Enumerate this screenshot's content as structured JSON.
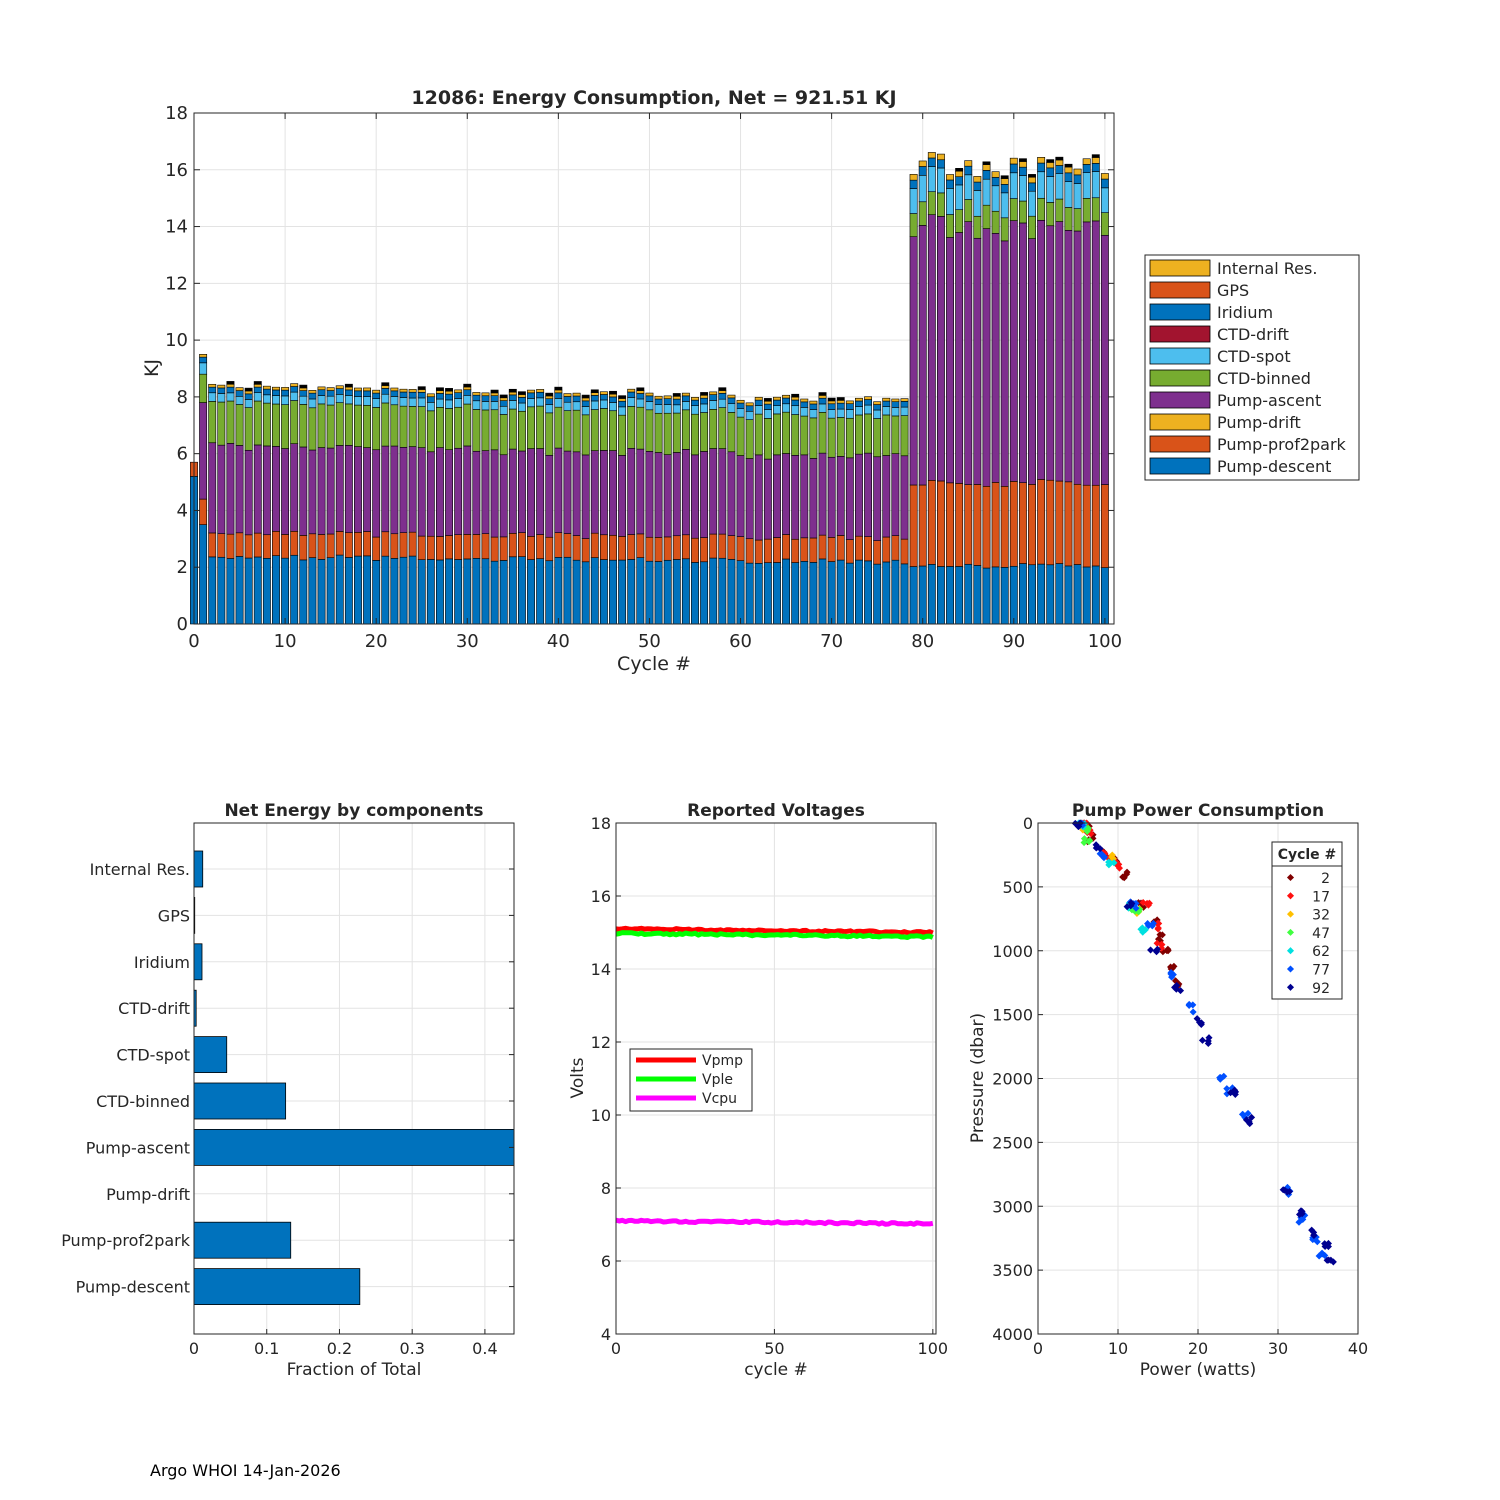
{
  "footer": "Argo WHOI 14-Jan-2026",
  "colors": {
    "Pump-descent": "#0072BD",
    "Pump-prof2park": "#D95319",
    "Pump-drift": "#EDB120",
    "Pump-ascent": "#7E2F8E",
    "CTD-binned": "#77AC30",
    "CTD-spot": "#4DBEEE",
    "CTD-drift": "#A2142F",
    "Iridium": "#0072BD",
    "GPS": "#D95319",
    "Internal Res.": "#EDB120",
    "black": "#000000"
  },
  "chart_data": [
    {
      "id": "energy",
      "type": "bar",
      "stacked": true,
      "title": "12086: Energy Consumption,  Net = 921.51 KJ",
      "xlabel": "Cycle #",
      "ylabel": "KJ",
      "xlim": [
        0,
        101
      ],
      "ylim": [
        0,
        18
      ],
      "xticks": [
        "0",
        "10",
        "20",
        "30",
        "40",
        "50",
        "60",
        "70",
        "80",
        "90",
        "100"
      ],
      "yticks": [
        "0",
        "2",
        "4",
        "6",
        "8",
        "10",
        "12",
        "14",
        "16",
        "18"
      ],
      "grid": true,
      "legend_position": "right",
      "legend": [
        "Internal Res.",
        "GPS",
        "Iridium",
        "CTD-drift",
        "CTD-spot",
        "CTD-binned",
        "Pump-ascent",
        "Pump-drift",
        "Pump-prof2park",
        "Pump-descent"
      ],
      "cycles": "1-100 (cycle 0: descent 5.2, prof2park 0.5)",
      "segments_typical": {
        "cycle_1": {
          "Pump-descent": 3.5,
          "Pump-prof2park": 0.9,
          "Pump-ascent": 3.4,
          "CTD-binned": 0.9,
          "CTD-spot": 0.4,
          "Iridium": 0.2,
          "Internal Res.": 0.1
        },
        "cycles_2_78": {
          "Pump-descent": 2.3,
          "Pump-prof2park": 0.85,
          "Pump-ascent": 3.1,
          "CTD-binned": 1.5,
          "CTD-spot": 0.3,
          "Iridium": 0.2,
          "Internal Res.": 0.1
        },
        "cycles_79_100": {
          "Pump-descent": 2.05,
          "Pump-prof2park": 2.9,
          "Pump-ascent": 9.0,
          "CTD-binned": 0.8,
          "CTD-spot": 0.9,
          "Iridium": 0.3,
          "Internal Res.": 0.2
        }
      }
    },
    {
      "id": "components",
      "type": "barh",
      "title": "Net Energy by components",
      "xlabel": "Fraction of Total",
      "ylabel": "",
      "xlim": [
        0,
        0.44
      ],
      "xticks": [
        "0",
        "0.1",
        "0.2",
        "0.3",
        "0.4"
      ],
      "grid": true,
      "categories": [
        "Internal Res.",
        "GPS",
        "Iridium",
        "CTD-drift",
        "CTD-spot",
        "CTD-binned",
        "Pump-ascent",
        "Pump-drift",
        "Pump-prof2park",
        "Pump-descent"
      ],
      "values": [
        0.012,
        0.001,
        0.011,
        0.003,
        0.045,
        0.126,
        0.44,
        0.0,
        0.133,
        0.228
      ]
    },
    {
      "id": "voltages",
      "type": "line",
      "title": "Reported Voltages",
      "xlabel": "cycle #",
      "ylabel": "Volts",
      "xlim": [
        0,
        101
      ],
      "ylim": [
        4,
        18
      ],
      "xticks": [
        "0",
        "50",
        "100"
      ],
      "yticks": [
        "4",
        "6",
        "8",
        "10",
        "12",
        "14",
        "16",
        "18"
      ],
      "grid": true,
      "legend_position": "center-left",
      "series": [
        {
          "name": "Vpmp",
          "color": "#FF0000",
          "start": 15.1,
          "end": 15.0
        },
        {
          "name": "Vple",
          "color": "#00FF00",
          "start": 14.98,
          "end": 14.88
        },
        {
          "name": "Vcpu",
          "color": "#FF00FF",
          "start": 7.1,
          "end": 7.02
        }
      ]
    },
    {
      "id": "pump",
      "type": "scatter",
      "title": "Pump Power Consumption",
      "xlabel": "Power (watts)",
      "ylabel": "Pressure (dbar)",
      "xlim": [
        0,
        40
      ],
      "ylim": [
        0,
        4000
      ],
      "y_reversed": true,
      "xticks": [
        "0",
        "10",
        "20",
        "30",
        "40"
      ],
      "yticks": [
        "0",
        "500",
        "1000",
        "1500",
        "2000",
        "2500",
        "3000",
        "3500",
        "4000"
      ],
      "grid": true,
      "legend_title": "Cycle #",
      "legend_position": "top-right",
      "series": [
        {
          "name": "2",
          "color": "#800000",
          "points": [
            [
              5.5,
              0
            ],
            [
              6,
              50
            ],
            [
              6.5,
              120
            ],
            [
              8,
              230
            ],
            [
              9.5,
              300
            ],
            [
              11,
              400
            ],
            [
              13,
              650
            ],
            [
              14.5,
              780
            ],
            [
              15.5,
              900
            ],
            [
              16,
              1000
            ],
            [
              17,
              1150
            ],
            [
              17.5,
              1250
            ]
          ]
        },
        {
          "name": "17",
          "color": "#FF1010",
          "points": [
            [
              5.7,
              20
            ],
            [
              6.3,
              80
            ],
            [
              8.5,
              260
            ],
            [
              10,
              330
            ],
            [
              13.5,
              640
            ],
            [
              15,
              800
            ],
            [
              15.3,
              950
            ]
          ]
        },
        {
          "name": "32",
          "color": "#FFC000",
          "points": [
            [
              5.8,
              30
            ],
            [
              9,
              280
            ],
            [
              12.5,
              680
            ]
          ]
        },
        {
          "name": "47",
          "color": "#40FF40",
          "points": [
            [
              5.9,
              40
            ],
            [
              6.2,
              140
            ],
            [
              11.8,
              650
            ],
            [
              12.5,
              700
            ]
          ]
        },
        {
          "name": "62",
          "color": "#00E0E0",
          "points": [
            [
              5.4,
              10
            ],
            [
              9.2,
              300
            ],
            [
              11.5,
              640
            ],
            [
              13,
              830
            ]
          ]
        },
        {
          "name": "77",
          "color": "#0050FF",
          "points": [
            [
              5.2,
              5
            ],
            [
              8,
              250
            ],
            [
              12,
              640
            ],
            [
              14,
              800
            ],
            [
              16.5,
              1200
            ],
            [
              19,
              1450
            ],
            [
              23,
              1980
            ],
            [
              24,
              2100
            ],
            [
              26,
              2300
            ],
            [
              31.5,
              2880
            ],
            [
              33,
              3100
            ],
            [
              34.5,
              3250
            ],
            [
              35.5,
              3380
            ]
          ]
        },
        {
          "name": "92",
          "color": "#000090",
          "points": [
            [
              5.1,
              0
            ],
            [
              7.5,
              200
            ],
            [
              11.5,
              650
            ],
            [
              14.5,
              1000
            ],
            [
              17.5,
              1300
            ],
            [
              20,
              1550
            ],
            [
              21,
              1700
            ],
            [
              24.5,
              2100
            ],
            [
              26.5,
              2330
            ],
            [
              31,
              2860
            ],
            [
              33,
              3050
            ],
            [
              34.5,
              3200
            ],
            [
              36,
              3300
            ],
            [
              36.5,
              3420
            ]
          ]
        }
      ]
    }
  ]
}
